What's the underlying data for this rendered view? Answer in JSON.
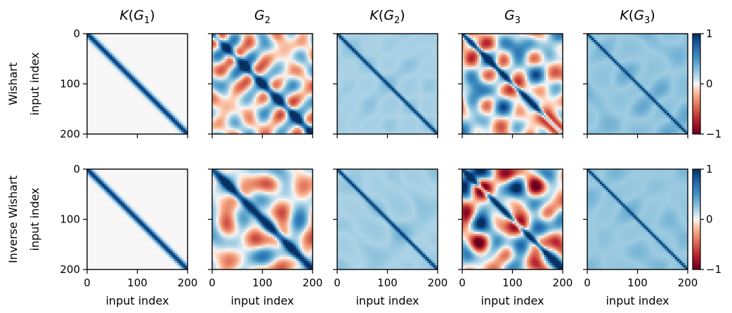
{
  "chart_data": {
    "type": "heatmap",
    "columns": [
      {
        "title_main": "K",
        "title_paren": "(G",
        "title_sub": "1",
        "title_close": ")"
      },
      {
        "title_main": "G",
        "title_paren": "",
        "title_sub": "2",
        "title_close": ""
      },
      {
        "title_main": "K",
        "title_paren": "(G",
        "title_sub": "2",
        "title_close": ")"
      },
      {
        "title_main": "G",
        "title_paren": "",
        "title_sub": "3",
        "title_close": ""
      },
      {
        "title_main": "K",
        "title_paren": "(G",
        "title_sub": "3",
        "title_close": ")"
      }
    ],
    "rows": [
      {
        "label": "Wishart",
        "ylabel": "input index"
      },
      {
        "label": "Inverse Wishart",
        "ylabel": "input index"
      }
    ],
    "xlabel": "input index",
    "ylabel": "input index",
    "xlim": [
      0,
      200
    ],
    "ylim": [
      0,
      200
    ],
    "xticks": [
      "0",
      "100",
      "200"
    ],
    "yticks": [
      "0",
      "100",
      "200"
    ],
    "colorbar": {
      "ticks": [
        "1",
        "0",
        "−1"
      ],
      "range": [
        -1,
        1
      ],
      "colormap": "RdBu"
    },
    "panel_style": [
      {
        "kind": "smooth_diag",
        "diag_width": 6,
        "noise": 0.0,
        "offdiag_level": 0.0
      },
      {
        "kind": "noisy_full",
        "diag_width": 8,
        "noise": 0.85,
        "offdiag_level": 0.0
      },
      {
        "kind": "light_pos",
        "diag_width": 3,
        "noise": 0.22,
        "offdiag_level": 0.18
      },
      {
        "kind": "noisy_full",
        "diag_width": 5,
        "noise": 0.95,
        "offdiag_level": 0.0
      },
      {
        "kind": "light_pos",
        "diag_width": 2,
        "noise": 0.28,
        "offdiag_level": 0.22
      }
    ]
  },
  "colors": {
    "max": "#053061",
    "mid": "#f7f7f7",
    "min": "#67001f"
  }
}
